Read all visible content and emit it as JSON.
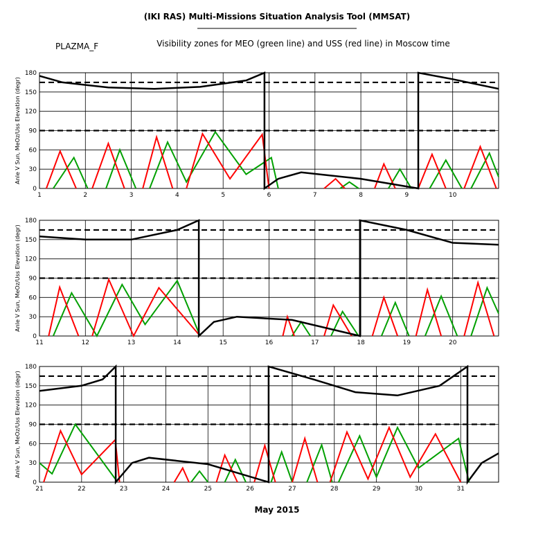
{
  "header": {
    "title": "(IKI RAS) Multi-Missions Situation Analysis Tool (MMSAT)",
    "name": "PLAZMA_F",
    "subtitle": "Visibility zones for MEO (green line) and USS (red line) in Moscow time"
  },
  "xlabel": "May 2015",
  "chart_data": [
    {
      "type": "line",
      "ylabel": "Anle V Sun, MeOz/Uss Elevation (degr)",
      "xlim": [
        1,
        11
      ],
      "xticks": [
        1,
        2,
        3,
        4,
        5,
        6,
        7,
        8,
        9,
        10
      ],
      "ylim": [
        0,
        180
      ],
      "yticks": [
        0,
        30,
        60,
        90,
        120,
        150,
        180
      ],
      "grid": true,
      "reference_lines": [
        90,
        165
      ],
      "series": [
        {
          "color": "#00a000",
          "x": [
            1.3,
            1.75,
            2.05,
            null,
            2.45,
            2.75,
            3.1,
            null,
            3.4,
            3.79,
            4.2,
            4.83,
            5.5,
            6.05,
            6.2,
            null,
            7.55,
            7.75,
            7.95,
            null,
            8.6,
            8.85,
            9.1,
            null,
            9.5,
            9.85,
            10.2,
            null,
            10.4,
            10.8,
            11
          ],
          "values": [
            0,
            48,
            0,
            null,
            0,
            60,
            0,
            null,
            0,
            72,
            10,
            88,
            22,
            48,
            0,
            null,
            0,
            10,
            0,
            null,
            0,
            30,
            0,
            null,
            0,
            44,
            0,
            null,
            0,
            55,
            18
          ]
        },
        {
          "color": "#ff0000",
          "x": [
            1.15,
            1.45,
            1.8,
            null,
            2.15,
            2.5,
            2.85,
            null,
            3.25,
            3.55,
            3.9,
            null,
            4.2,
            4.55,
            5.15,
            5.85,
            6.0,
            null,
            7.2,
            7.45,
            7.65,
            null,
            8.3,
            8.5,
            8.75,
            null,
            9.25,
            9.55,
            9.85,
            null,
            10.25,
            10.6,
            10.95
          ],
          "values": [
            0,
            58,
            0,
            null,
            0,
            70,
            0,
            null,
            0,
            80,
            0,
            null,
            0,
            85,
            15,
            84,
            0,
            null,
            0,
            15,
            0,
            null,
            0,
            38,
            0,
            null,
            0,
            53,
            0,
            null,
            0,
            65,
            0
          ]
        },
        {
          "color": "#000000",
          "x": [
            1,
            1.5,
            2.5,
            3.5,
            4.5,
            5.5,
            5.9,
            5.9,
            6.2,
            6.7,
            8,
            9.25,
            9.25,
            10,
            11
          ],
          "values": [
            175,
            165,
            157,
            155,
            158,
            168,
            180,
            0,
            15,
            25,
            15,
            0,
            180,
            170,
            155
          ]
        }
      ]
    },
    {
      "type": "line",
      "ylabel": "Anle V Sun, MeOz/Uss Elevation (degr)",
      "xlim": [
        11,
        21
      ],
      "xticks": [
        11,
        12,
        13,
        14,
        15,
        16,
        17,
        18,
        19,
        20
      ],
      "ylim": [
        0,
        180
      ],
      "yticks": [
        0,
        30,
        60,
        90,
        120,
        150,
        180
      ],
      "grid": true,
      "reference_lines": [
        90,
        165
      ],
      "series": [
        {
          "color": "#00a000",
          "x": [
            11.3,
            11.7,
            12.25,
            12.8,
            13.3,
            14.0,
            14.5,
            null,
            16.5,
            16.7,
            16.9,
            null,
            17.35,
            17.6,
            17.95,
            null,
            18.45,
            18.75,
            19.05,
            null,
            19.4,
            19.75,
            20.1,
            null,
            20.4,
            20.75,
            21
          ],
          "values": [
            0,
            67,
            0,
            80,
            18,
            86,
            0,
            null,
            0,
            22,
            0,
            null,
            0,
            38,
            0,
            null,
            0,
            52,
            0,
            null,
            0,
            62,
            0,
            null,
            0,
            75,
            35
          ]
        },
        {
          "color": "#ff0000",
          "x": [
            11.2,
            11.44,
            11.85,
            null,
            12.15,
            12.51,
            13.05,
            13.6,
            14.5,
            null,
            16.3,
            16.4,
            16.55,
            null,
            17.2,
            17.4,
            17.8,
            null,
            18.25,
            18.5,
            18.8,
            null,
            19.2,
            19.45,
            19.75,
            null,
            20.25,
            20.55,
            20.9
          ],
          "values": [
            0,
            76,
            0,
            null,
            0,
            88,
            0,
            75,
            0,
            null,
            0,
            30,
            0,
            null,
            0,
            48,
            0,
            null,
            0,
            60,
            0,
            null,
            0,
            72,
            0,
            null,
            0,
            83,
            0
          ]
        },
        {
          "color": "#000000",
          "x": [
            11,
            12,
            13,
            14,
            14.47,
            14.47,
            14.8,
            15.3,
            16.5,
            17.98,
            17.98,
            19,
            20,
            21
          ],
          "values": [
            155,
            150,
            150,
            165,
            180,
            0,
            22,
            30,
            25,
            0,
            180,
            165,
            145,
            142
          ]
        }
      ]
    },
    {
      "type": "line",
      "ylabel": "Anle V Sun, MeOz/Uss Elevation (degr)",
      "xlim": [
        21,
        31.9
      ],
      "xticks": [
        21,
        22,
        23,
        24,
        25,
        26,
        27,
        28,
        29,
        30,
        31
      ],
      "ylim": [
        0,
        180
      ],
      "yticks": [
        0,
        30,
        60,
        90,
        120,
        150,
        180
      ],
      "grid": true,
      "reference_lines": [
        90,
        165
      ],
      "series": [
        {
          "color": "#00a000",
          "x": [
            21,
            21.3,
            21.85,
            22.8,
            null,
            24.6,
            24.8,
            25.0,
            null,
            25.4,
            25.65,
            25.9,
            null,
            26.5,
            26.75,
            27.0,
            null,
            27.35,
            27.7,
            27.95,
            null,
            28.1,
            28.6,
            29.0,
            29.5,
            30.0,
            30.95,
            31.2
          ],
          "values": [
            30,
            13,
            90,
            5,
            null,
            0,
            17,
            0,
            null,
            0,
            35,
            0,
            null,
            0,
            47,
            0,
            null,
            0,
            58,
            0,
            null,
            0,
            72,
            8,
            85,
            22,
            68,
            0
          ]
        },
        {
          "color": "#ff0000",
          "x": [
            21.1,
            21.5,
            22.0,
            22.8,
            22.9,
            null,
            24.2,
            24.4,
            24.55,
            null,
            25.2,
            25.4,
            25.7,
            null,
            26.1,
            26.35,
            26.6,
            null,
            27.0,
            27.3,
            27.6,
            null,
            27.9,
            28.3,
            28.8,
            29.3,
            29.8,
            30.4,
            31.0
          ],
          "values": [
            0,
            80,
            12,
            66,
            0,
            null,
            0,
            22,
            0,
            null,
            0,
            42,
            0,
            null,
            0,
            57,
            0,
            null,
            0,
            68,
            0,
            null,
            0,
            78,
            5,
            85,
            8,
            75,
            0
          ]
        },
        {
          "color": "#000000",
          "x": [
            21,
            22,
            22.5,
            22.81,
            22.81,
            23.2,
            23.6,
            25,
            26.44,
            26.44,
            27.5,
            28.5,
            29.5,
            30.5,
            31.16,
            31.16,
            31.5,
            31.9
          ],
          "values": [
            142,
            150,
            160,
            180,
            0,
            30,
            38,
            28,
            0,
            180,
            160,
            140,
            135,
            150,
            180,
            0,
            30,
            45
          ]
        }
      ]
    }
  ]
}
